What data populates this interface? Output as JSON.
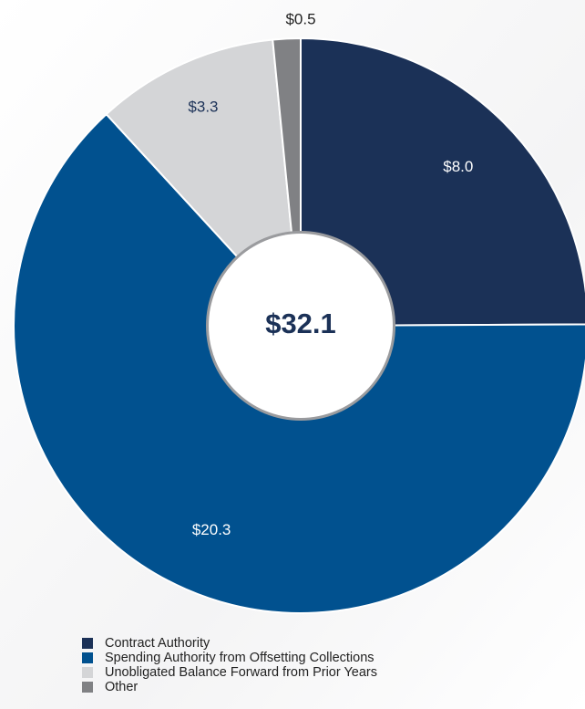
{
  "chart_data": {
    "type": "donut",
    "categories": [
      "Contract Authority",
      "Spending Authority from Offsetting Collections",
      "Unobligated Balance Forward from Prior Years",
      "Other"
    ],
    "values": [
      8.0,
      20.3,
      3.3,
      0.5
    ],
    "value_labels": [
      "$8.0",
      "$20.3",
      "$3.3",
      "$0.5"
    ],
    "colors": [
      "#1b3157",
      "#01518f",
      "#d4d5d7",
      "#808184"
    ],
    "center_label": "$32.1",
    "legend": "bottom-left"
  }
}
